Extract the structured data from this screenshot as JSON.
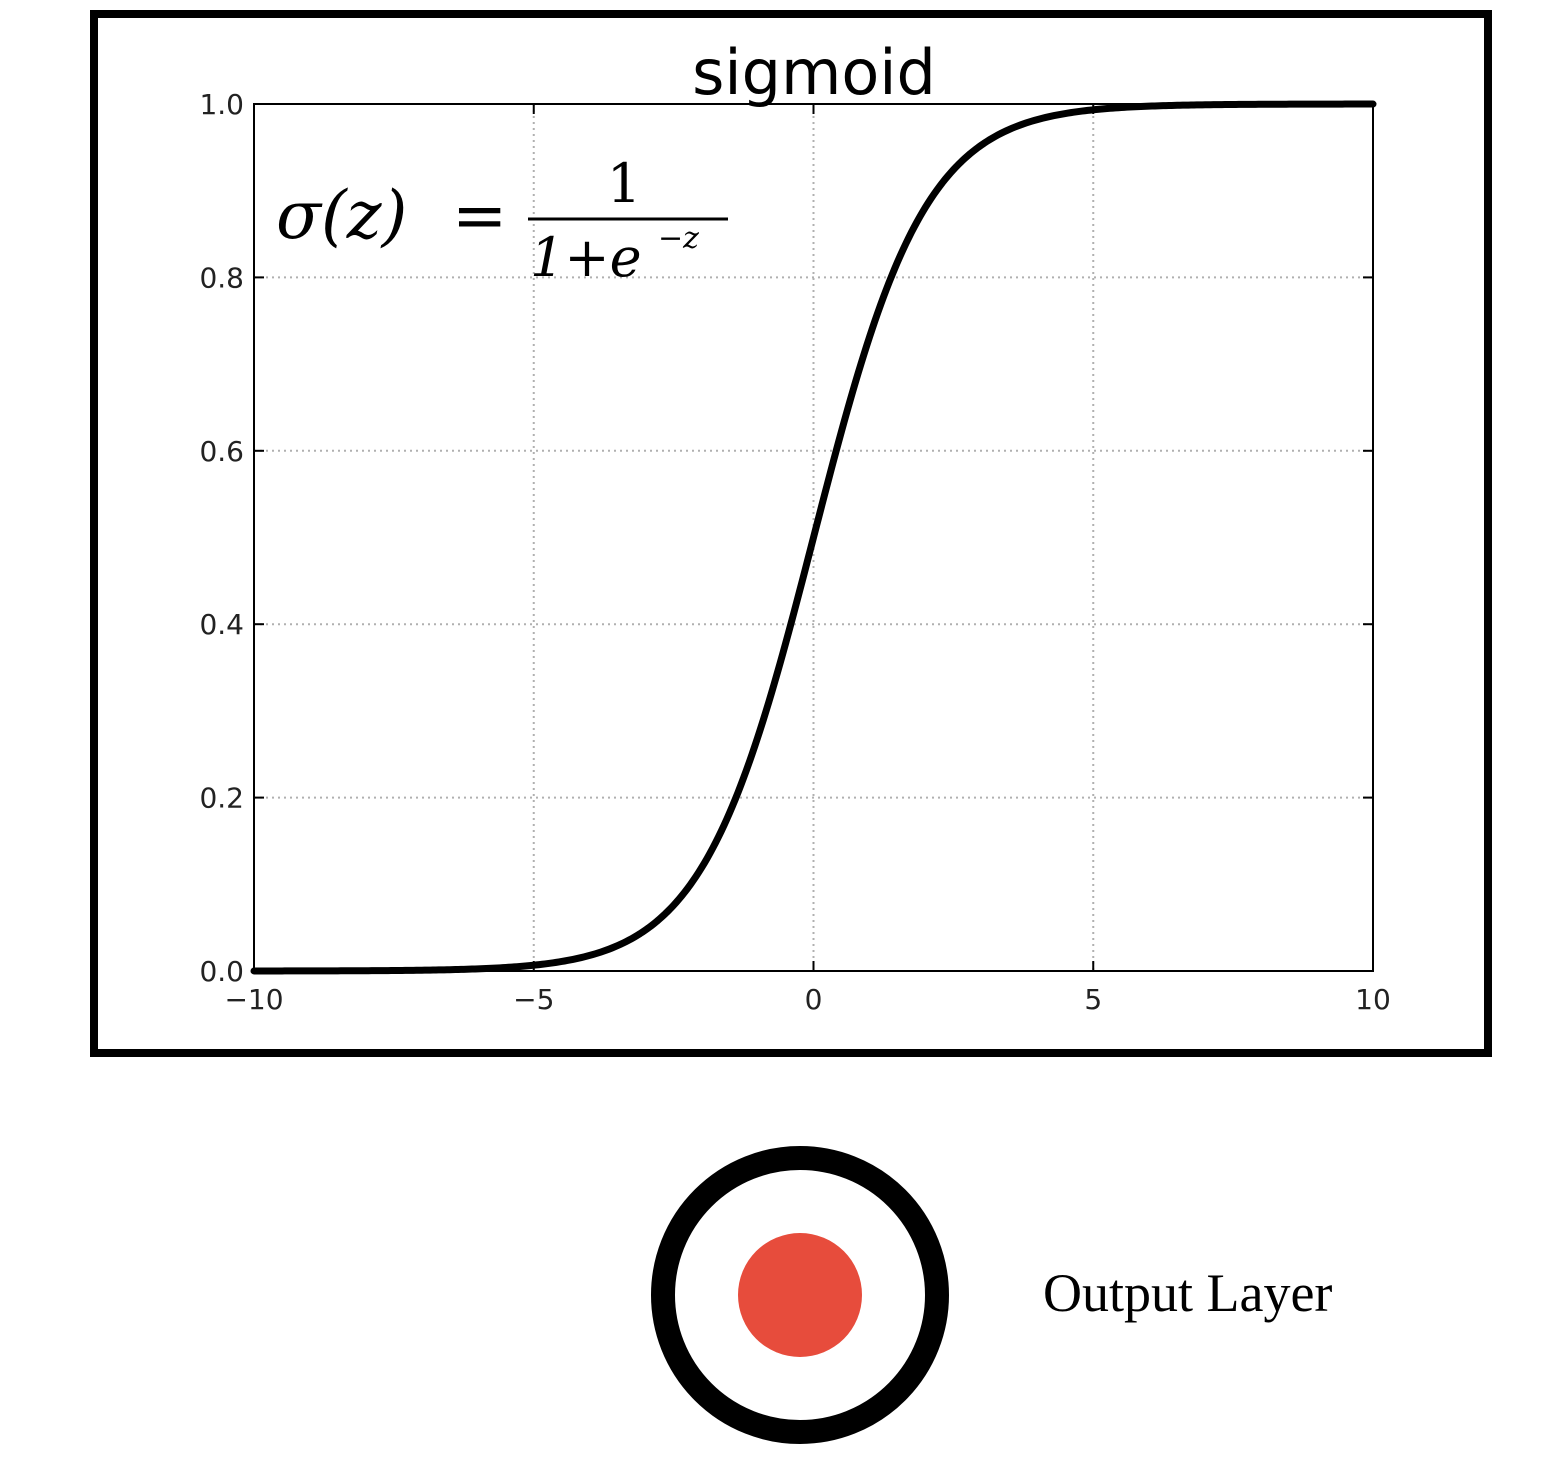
{
  "colors": {
    "frame": "#000000",
    "curve": "#000000",
    "grid": "#b0b0b0",
    "node_ring": "#000000",
    "node_fill": "#e74c3c"
  },
  "chart_data": {
    "type": "line",
    "title": "sigmoid",
    "formula": {
      "lhs": "σ(z)",
      "equals": "=",
      "numerator": "1",
      "denominator_base": "1+e",
      "denominator_exponent": "−z"
    },
    "xlabel": "",
    "ylabel": "",
    "xlim": [
      -10,
      10
    ],
    "ylim": [
      0,
      1
    ],
    "xticks": [
      -10,
      -5,
      0,
      5,
      10
    ],
    "xtick_labels": [
      "−10",
      "−5",
      "0",
      "5",
      "10"
    ],
    "yticks": [
      0,
      0.2,
      0.4,
      0.6,
      0.8,
      1.0
    ],
    "ytick_labels": [
      "0.0",
      "0.2",
      "0.4",
      "0.6",
      "0.8",
      "1.0"
    ],
    "grid": true,
    "grid_style": "dotted",
    "series": [
      {
        "function": "1/(1+exp(-z))",
        "x": [
          -10,
          -8,
          -6,
          -5,
          -4,
          -3,
          -2,
          -1,
          0,
          1,
          2,
          3,
          4,
          5,
          6,
          8,
          10
        ],
        "y": [
          5e-05,
          0.0003,
          0.0025,
          0.0067,
          0.018,
          0.047,
          0.119,
          0.269,
          0.5,
          0.731,
          0.881,
          0.953,
          0.982,
          0.9933,
          0.9975,
          0.9997,
          0.99995
        ]
      }
    ]
  },
  "output_node": {
    "label": "Output Layer"
  }
}
